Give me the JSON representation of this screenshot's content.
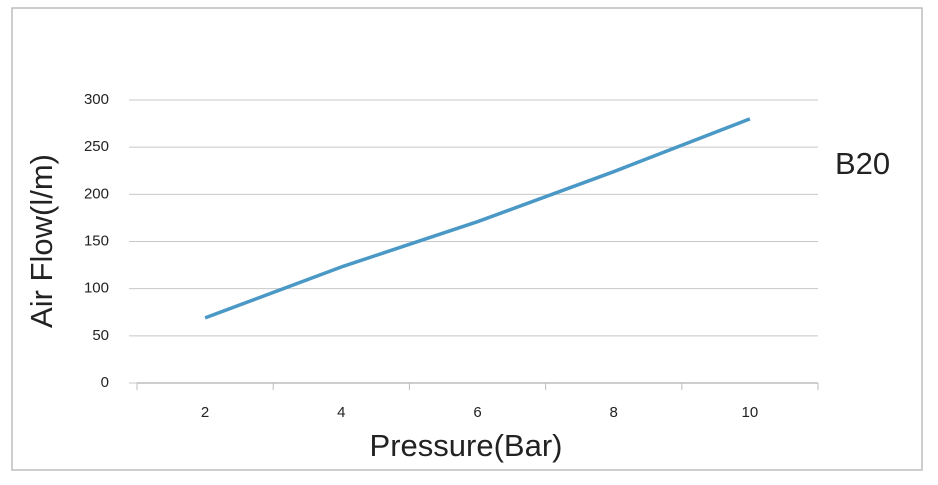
{
  "chart_data": {
    "type": "line",
    "x_label": "Pressure(Bar)",
    "y_label": "Air Flow(l/m)",
    "categories": [
      "2",
      "4",
      "6",
      "8",
      "10"
    ],
    "series": [
      {
        "name": "B20",
        "color": "#4a98c6",
        "values": [
          69,
          123,
          171,
          224,
          280
        ]
      }
    ],
    "ylim": [
      0,
      300
    ],
    "yticks": [
      0,
      50,
      100,
      150,
      200,
      250,
      300
    ],
    "grid": true,
    "legend": "right"
  }
}
